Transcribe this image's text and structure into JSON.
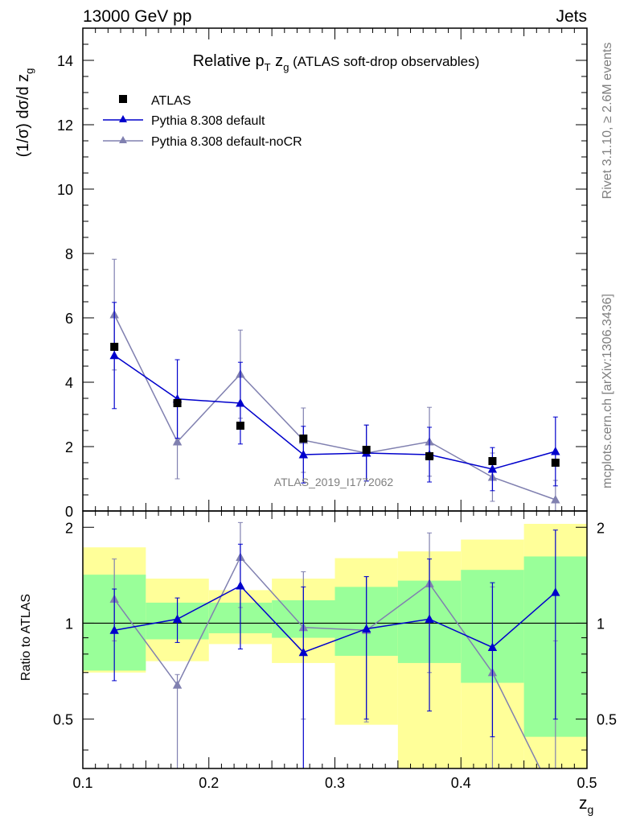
{
  "header": {
    "left": "13000 GeV pp",
    "right": "Jets"
  },
  "side_labels": {
    "rivet": "Rivet 3.1.10, ≥ 2.6M events",
    "mcplots": "mcplots.cern.ch [arXiv:1306.3436]"
  },
  "watermark": "ATLAS_2019_I1772062",
  "chart_data": [
    {
      "type": "line",
      "panel": "main",
      "title": "Relative pT zg (ATLAS soft-drop observables)",
      "ylabel": "(1/σ) dσ/d zg",
      "xlim": [
        0.1,
        0.5
      ],
      "ylim": [
        0,
        15
      ],
      "yticks": [
        0,
        2,
        4,
        6,
        8,
        10,
        12,
        14
      ],
      "legend_position": "top-left",
      "series": [
        {
          "name": "ATLAS",
          "style": "square-marker",
          "color": "#000000",
          "x": [
            0.125,
            0.175,
            0.225,
            0.275,
            0.325,
            0.375,
            0.425,
            0.475
          ],
          "y": [
            5.1,
            3.35,
            2.65,
            2.25,
            1.9,
            1.7,
            1.55,
            1.5
          ]
        },
        {
          "name": "Pythia 8.308 default",
          "style": "triangle-line",
          "color": "#0000cc",
          "x": [
            0.125,
            0.175,
            0.225,
            0.275,
            0.325,
            0.375,
            0.425,
            0.475
          ],
          "y": [
            4.83,
            3.48,
            3.35,
            1.75,
            1.8,
            1.75,
            1.3,
            1.85
          ],
          "yerr": [
            1.65,
            1.22,
            1.27,
            0.88,
            0.87,
            0.85,
            0.67,
            1.07
          ]
        },
        {
          "name": "Pythia 8.308 default-noCR",
          "style": "triangle-line",
          "color": "#8080b0",
          "x": [
            0.125,
            0.175,
            0.225,
            0.275,
            0.325,
            0.375,
            0.425,
            0.475
          ],
          "y": [
            6.1,
            2.15,
            4.25,
            2.2,
            1.8,
            2.15,
            1.05,
            0.35
          ],
          "yerr": [
            1.72,
            1.15,
            1.37,
            1.0,
            0.87,
            1.07,
            0.75,
            0.6
          ]
        }
      ]
    },
    {
      "type": "line",
      "panel": "ratio",
      "ylabel": "Ratio to ATLAS",
      "xlabel": "zg",
      "xlim": [
        0.1,
        0.5
      ],
      "ylim": [
        0.35,
        2.25
      ],
      "log_y": true,
      "yticks": [
        0.5,
        1,
        2
      ],
      "xticks": [
        0.1,
        0.2,
        0.3,
        0.4,
        0.5
      ],
      "bands": {
        "edges": [
          0.1,
          0.15,
          0.2,
          0.25,
          0.3,
          0.35,
          0.4,
          0.45,
          0.5
        ],
        "yellow_low": [
          0.7,
          0.76,
          0.86,
          0.75,
          0.48,
          0.35,
          0.35,
          0.35
        ],
        "yellow_high": [
          1.73,
          1.38,
          1.27,
          1.38,
          1.6,
          1.68,
          1.83,
          2.05
        ],
        "green_low": [
          0.71,
          0.89,
          0.93,
          0.9,
          0.79,
          0.75,
          0.65,
          0.44
        ],
        "green_high": [
          1.42,
          1.16,
          1.16,
          1.18,
          1.3,
          1.36,
          1.47,
          1.62
        ]
      },
      "series": [
        {
          "name": "Pythia 8.308 default",
          "color": "#0000cc",
          "x": [
            0.125,
            0.175,
            0.225,
            0.275,
            0.325,
            0.375,
            0.425,
            0.475
          ],
          "y": [
            0.95,
            1.03,
            1.31,
            0.81,
            0.96,
            1.03,
            0.84,
            1.25
          ],
          "yerr_low": [
            0.29,
            0.16,
            0.48,
            0.5,
            0.46,
            0.5,
            0.4,
            0.75
          ],
          "yerr_high": [
            0.33,
            0.17,
            0.46,
            0.49,
            0.44,
            0.56,
            0.5,
            0.71
          ]
        },
        {
          "name": "Pythia 8.308 default-noCR",
          "color": "#8080b0",
          "x": [
            0.125,
            0.175,
            0.225,
            0.275,
            0.325,
            0.375,
            0.425,
            0.475
          ],
          "y": [
            1.19,
            0.64,
            1.61,
            0.97,
            0.95,
            1.33,
            0.7,
            0.28
          ],
          "yerr_low": [
            0.31,
            0.34,
            0.49,
            0.47,
            0.46,
            0.63,
            0.38,
            0.28
          ],
          "yerr_high": [
            0.4,
            0.05,
            0.46,
            0.48,
            0.45,
            0.59,
            0.6,
            0.6
          ]
        }
      ]
    }
  ]
}
